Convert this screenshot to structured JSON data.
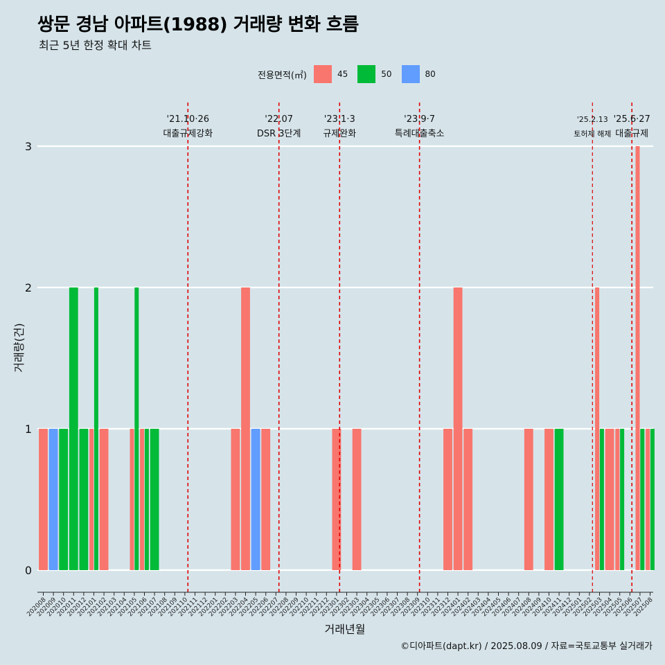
{
  "header": {
    "title": "쌍문 경남 아파트(1988) 거래량 변화 흐름",
    "subtitle": "최근 5년 한정 확대 차트"
  },
  "legend": {
    "title": "전용면적(㎡)",
    "items": [
      {
        "label": "45",
        "color": "#f8766d"
      },
      {
        "label": "50",
        "color": "#00ba38"
      },
      {
        "label": "80",
        "color": "#619cff"
      }
    ]
  },
  "footer": {
    "credit": "©디아파트(dapt.kr) / 2025.08.09 / 자료=국토교통부 실거래가"
  },
  "chart_data": {
    "type": "bar",
    "xlabel": "거래년월",
    "ylabel": "거래량(건)",
    "ylim": [
      0,
      3
    ],
    "yticks": [
      0,
      1,
      2,
      3
    ],
    "categories": [
      "202008",
      "202009",
      "202010",
      "202011",
      "202012",
      "202101",
      "202102",
      "202103",
      "202104",
      "202105",
      "202106",
      "202107",
      "202108",
      "202109",
      "202110",
      "202111",
      "202112",
      "202201",
      "202202",
      "202203",
      "202204",
      "202205",
      "202206",
      "202207",
      "202208",
      "202209",
      "202210",
      "202211",
      "202212",
      "202301",
      "202302",
      "202303",
      "202304",
      "202305",
      "202306",
      "202307",
      "202308",
      "202309",
      "202310",
      "202311",
      "202312",
      "202401",
      "202402",
      "202403",
      "202404",
      "202405",
      "202406",
      "202407",
      "202408",
      "202409",
      "202410",
      "202411",
      "202412",
      "202501",
      "202502",
      "202503",
      "202504",
      "202505",
      "202506",
      "202507",
      "202508"
    ],
    "series": [
      {
        "name": "45",
        "color": "#f8766d",
        "values": [
          1,
          0,
          0,
          0,
          0,
          1,
          1,
          0,
          0,
          1,
          1,
          0,
          0,
          0,
          0,
          0,
          0,
          0,
          0,
          1,
          2,
          0,
          1,
          0,
          0,
          0,
          0,
          0,
          0,
          1,
          0,
          1,
          0,
          0,
          0,
          0,
          0,
          0,
          0,
          0,
          1,
          2,
          1,
          0,
          0,
          0,
          0,
          0,
          1,
          0,
          1,
          0,
          0,
          0,
          0,
          2,
          1,
          1,
          0,
          3,
          1
        ]
      },
      {
        "name": "50",
        "color": "#00ba38",
        "values": [
          0,
          0,
          1,
          2,
          1,
          2,
          0,
          0,
          0,
          2,
          1,
          1,
          0,
          0,
          0,
          0,
          0,
          0,
          0,
          0,
          0,
          0,
          0,
          0,
          0,
          0,
          0,
          0,
          0,
          0,
          0,
          0,
          0,
          0,
          0,
          0,
          0,
          0,
          0,
          0,
          0,
          0,
          0,
          0,
          0,
          0,
          0,
          0,
          0,
          0,
          0,
          1,
          0,
          0,
          0,
          1,
          0,
          1,
          0,
          1,
          1
        ]
      },
      {
        "name": "80",
        "color": "#619cff",
        "values": [
          0,
          1,
          0,
          0,
          0,
          0,
          0,
          0,
          0,
          0,
          0,
          0,
          0,
          0,
          0,
          0,
          0,
          0,
          0,
          0,
          0,
          1,
          0,
          0,
          0,
          0,
          0,
          0,
          0,
          0,
          0,
          0,
          0,
          0,
          0,
          0,
          0,
          0,
          0,
          0,
          0,
          0,
          0,
          0,
          0,
          0,
          0,
          0,
          0,
          0,
          0,
          0,
          0,
          0,
          0,
          0,
          0,
          0,
          0,
          0,
          0
        ]
      }
    ],
    "annotations": [
      {
        "x": 14.3,
        "date": "'21.10·26",
        "label": "대출규제강화",
        "small": false
      },
      {
        "x": 23.3,
        "date": "'22.07",
        "label": "DSR 3단계",
        "small": false
      },
      {
        "x": 29.3,
        "date": "'23.1·3",
        "label": "규제완화",
        "small": false
      },
      {
        "x": 37.2,
        "date": "'23.9·7",
        "label": "특례대출축소",
        "small": false
      },
      {
        "x": 54.3,
        "date": "'25.2.13",
        "label": "토허제 해제",
        "small": true
      },
      {
        "x": 58.2,
        "date": "'25.6·27",
        "label": "대출규제",
        "small": false
      }
    ]
  }
}
